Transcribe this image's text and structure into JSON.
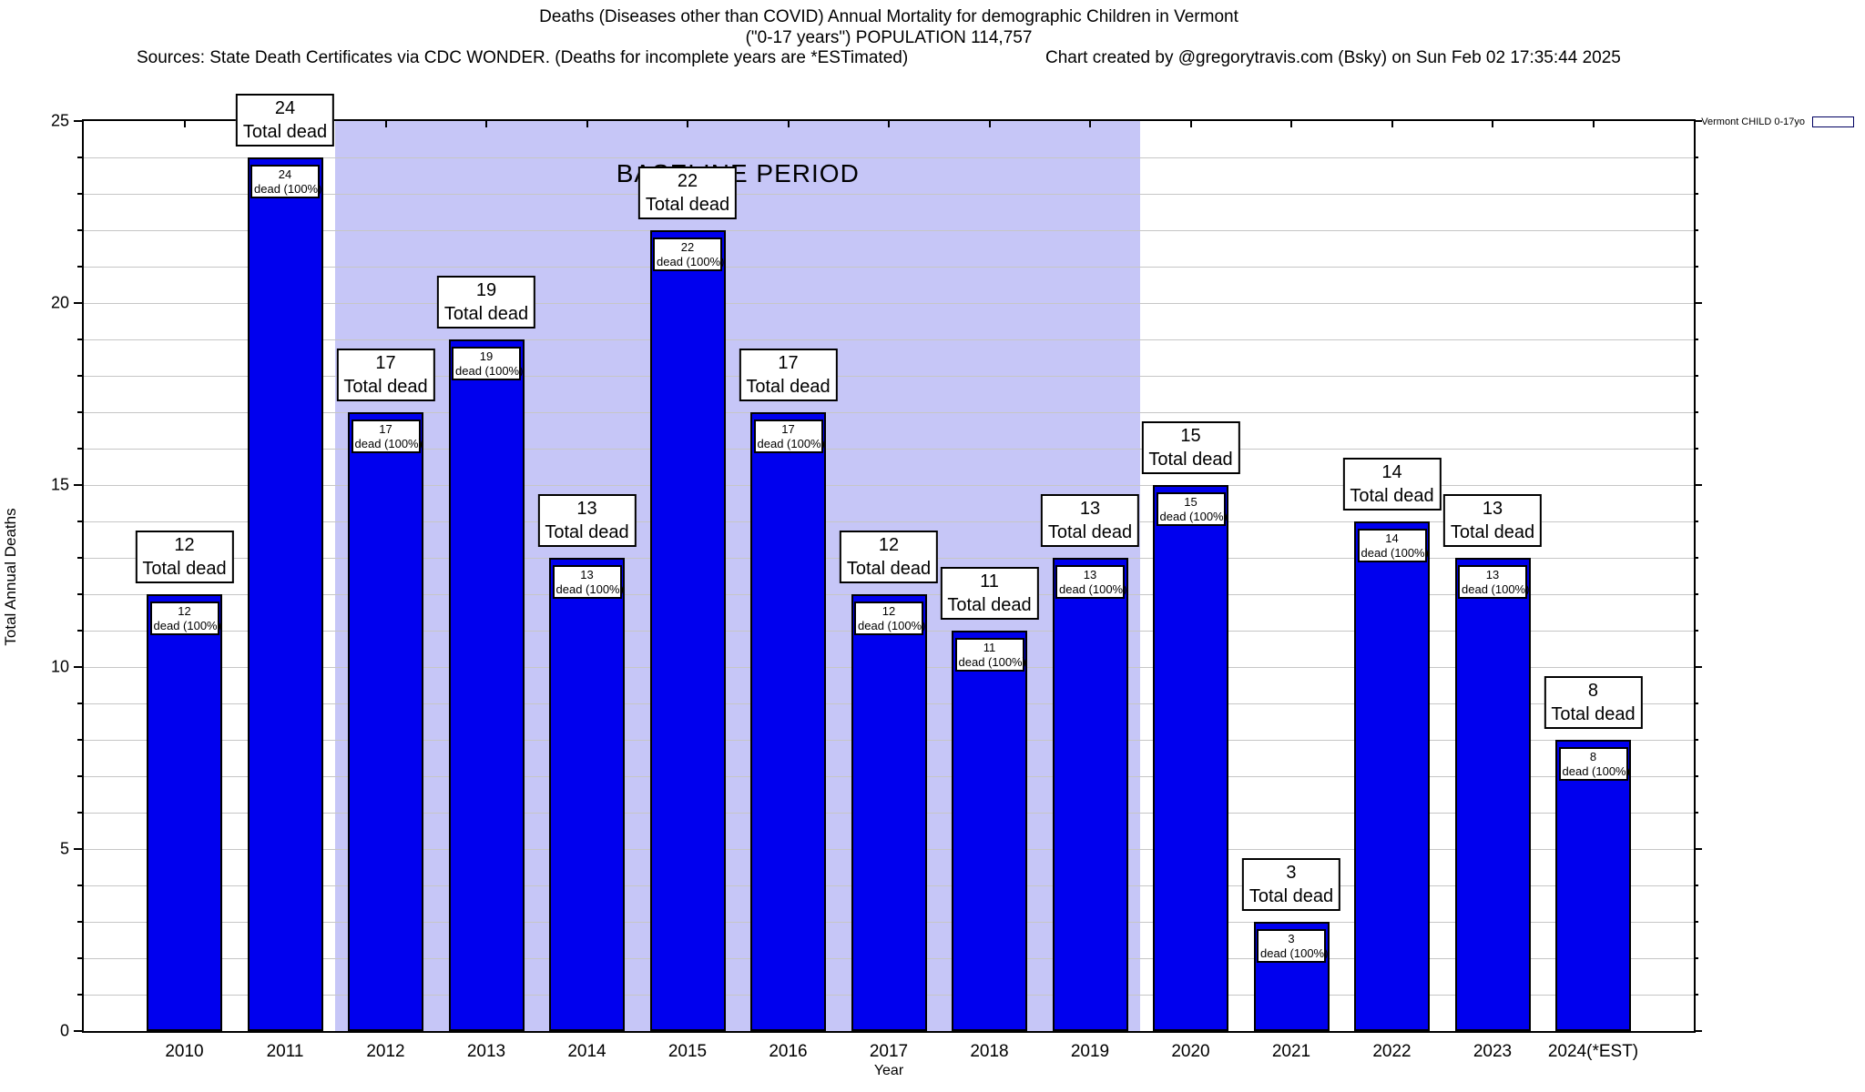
{
  "header": {
    "title_line1": "Deaths (Diseases other than COVID) Annual Mortality for demographic Children in Vermont",
    "title_line2": "(\"0-17 years\") POPULATION 114,757",
    "sources_line": "Sources: State Death Certificates via CDC WONDER. (Deaths for incomplete years are *ESTimated)",
    "credit_line": "Chart created by @gregorytravis.com (Bsky) on Sun Feb 02 17:35:44 2025"
  },
  "legend": {
    "label": "Vermont CHILD 0-17yo",
    "swatch_color": "#0000EE"
  },
  "chart_data": {
    "type": "bar",
    "title": "Deaths (Diseases other than COVID) Annual Mortality for demographic Children in Vermont (\"0-17 years\") POPULATION 114,757",
    "xlabel": "Year",
    "ylabel": "Total Annual Deaths",
    "ylim": [
      0,
      25
    ],
    "ytick_major_interval": 5,
    "grid_interval": 1,
    "grid_on": true,
    "legend_position": "top-right",
    "categories": [
      "2010",
      "2011",
      "2012",
      "2013",
      "2014",
      "2015",
      "2016",
      "2017",
      "2018",
      "2019",
      "2020",
      "2021",
      "2022",
      "2023",
      "2024(*EST)"
    ],
    "series": [
      {
        "name": "Vermont CHILD 0-17yo",
        "values": [
          12,
          24,
          17,
          19,
          13,
          22,
          17,
          12,
          11,
          13,
          15,
          3,
          14,
          13,
          8
        ]
      }
    ],
    "bar_top_label_suffix": "Total dead",
    "bar_inner_label_suffix": "dead (100%)",
    "annotations": {
      "baseline": {
        "label": "BASELINE PERIOD",
        "from_category": "2012",
        "to_category": "2019"
      }
    },
    "colors": {
      "bar_fill": "#0000EE",
      "bar_border": "#000000",
      "baseline_fill": "#C6C6F7",
      "gridline": "#C6C6C6",
      "plot_border": "#000000",
      "text": "#000000"
    }
  }
}
